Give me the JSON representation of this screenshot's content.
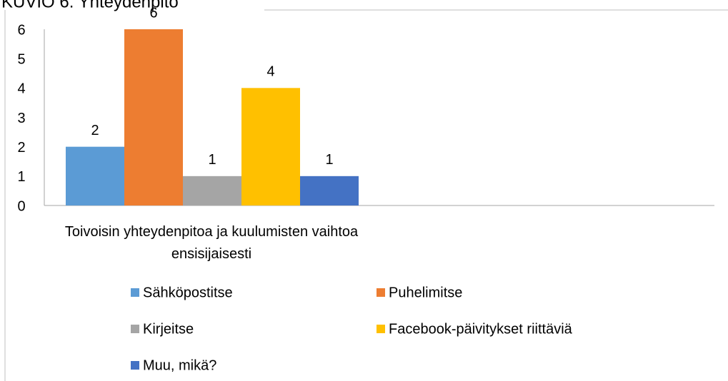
{
  "chart_data": {
    "type": "bar",
    "title": "KUVIO 6. Yhteydenpito",
    "categories": [
      "Toivoisin yhteydenpitoa ja kuulumisten vaihtoa ensisijaisesti"
    ],
    "series": [
      {
        "name": "Sähköpostitse",
        "color": "#5b9bd5",
        "values": [
          2
        ]
      },
      {
        "name": "Puhelimitse",
        "color": "#ed7d31",
        "values": [
          6
        ]
      },
      {
        "name": "Kirjeitse",
        "color": "#a5a5a5",
        "values": [
          1
        ]
      },
      {
        "name": "Facebook-päivitykset riittäviä",
        "color": "#ffc000",
        "values": [
          4
        ]
      },
      {
        "name": "Muu, mikä?",
        "color": "#4472c4",
        "values": [
          1
        ]
      }
    ],
    "ylim": [
      0,
      6
    ],
    "yticks": [
      0,
      1,
      2,
      3,
      4,
      5,
      6
    ],
    "grid": false,
    "legend": "bottom"
  }
}
